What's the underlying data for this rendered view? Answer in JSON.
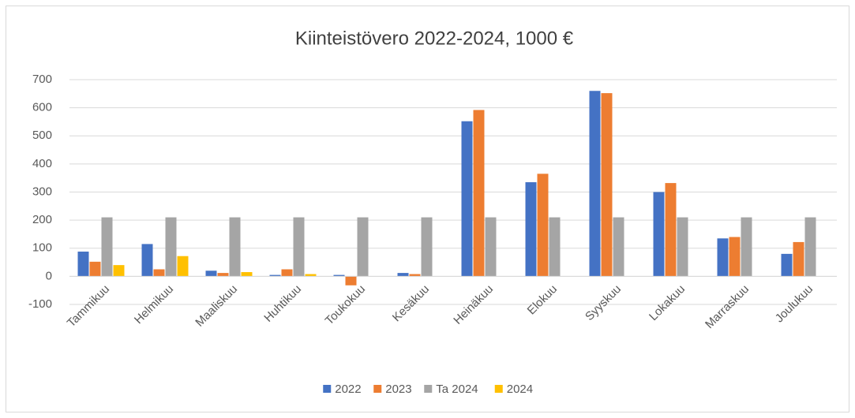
{
  "chart_data": {
    "type": "bar",
    "title": "Kiinteistövero 2022-2024, 1000 €",
    "categories": [
      "Tammikuu",
      "Helmikuu",
      "Maaliskuu",
      "Huhtikuu",
      "Toukokuu",
      "Kesäkuu",
      "Heinäkuu",
      "Elokuu",
      "Syyskuu",
      "Lokakuu",
      "Marraskuu",
      "Joulukuu"
    ],
    "series": [
      {
        "name": "2022",
        "color": "#4472c4",
        "values": [
          88,
          115,
          20,
          5,
          5,
          12,
          552,
          335,
          660,
          300,
          135,
          80
        ]
      },
      {
        "name": "2023",
        "color": "#ed7d31",
        "values": [
          52,
          25,
          12,
          25,
          -32,
          8,
          592,
          365,
          652,
          332,
          140,
          122
        ]
      },
      {
        "name": "Ta 2024",
        "color": "#a5a5a5",
        "values": [
          210,
          210,
          210,
          210,
          210,
          210,
          210,
          210,
          210,
          210,
          210,
          210
        ]
      },
      {
        "name": "2024",
        "color": "#ffc000",
        "values": [
          40,
          72,
          15,
          8,
          null,
          null,
          null,
          null,
          null,
          null,
          null,
          null
        ]
      }
    ],
    "ylim": [
      -100,
      700
    ],
    "yticks": [
      -100,
      0,
      100,
      200,
      300,
      400,
      500,
      600,
      700
    ],
    "grid": true,
    "legend": "bottom"
  }
}
